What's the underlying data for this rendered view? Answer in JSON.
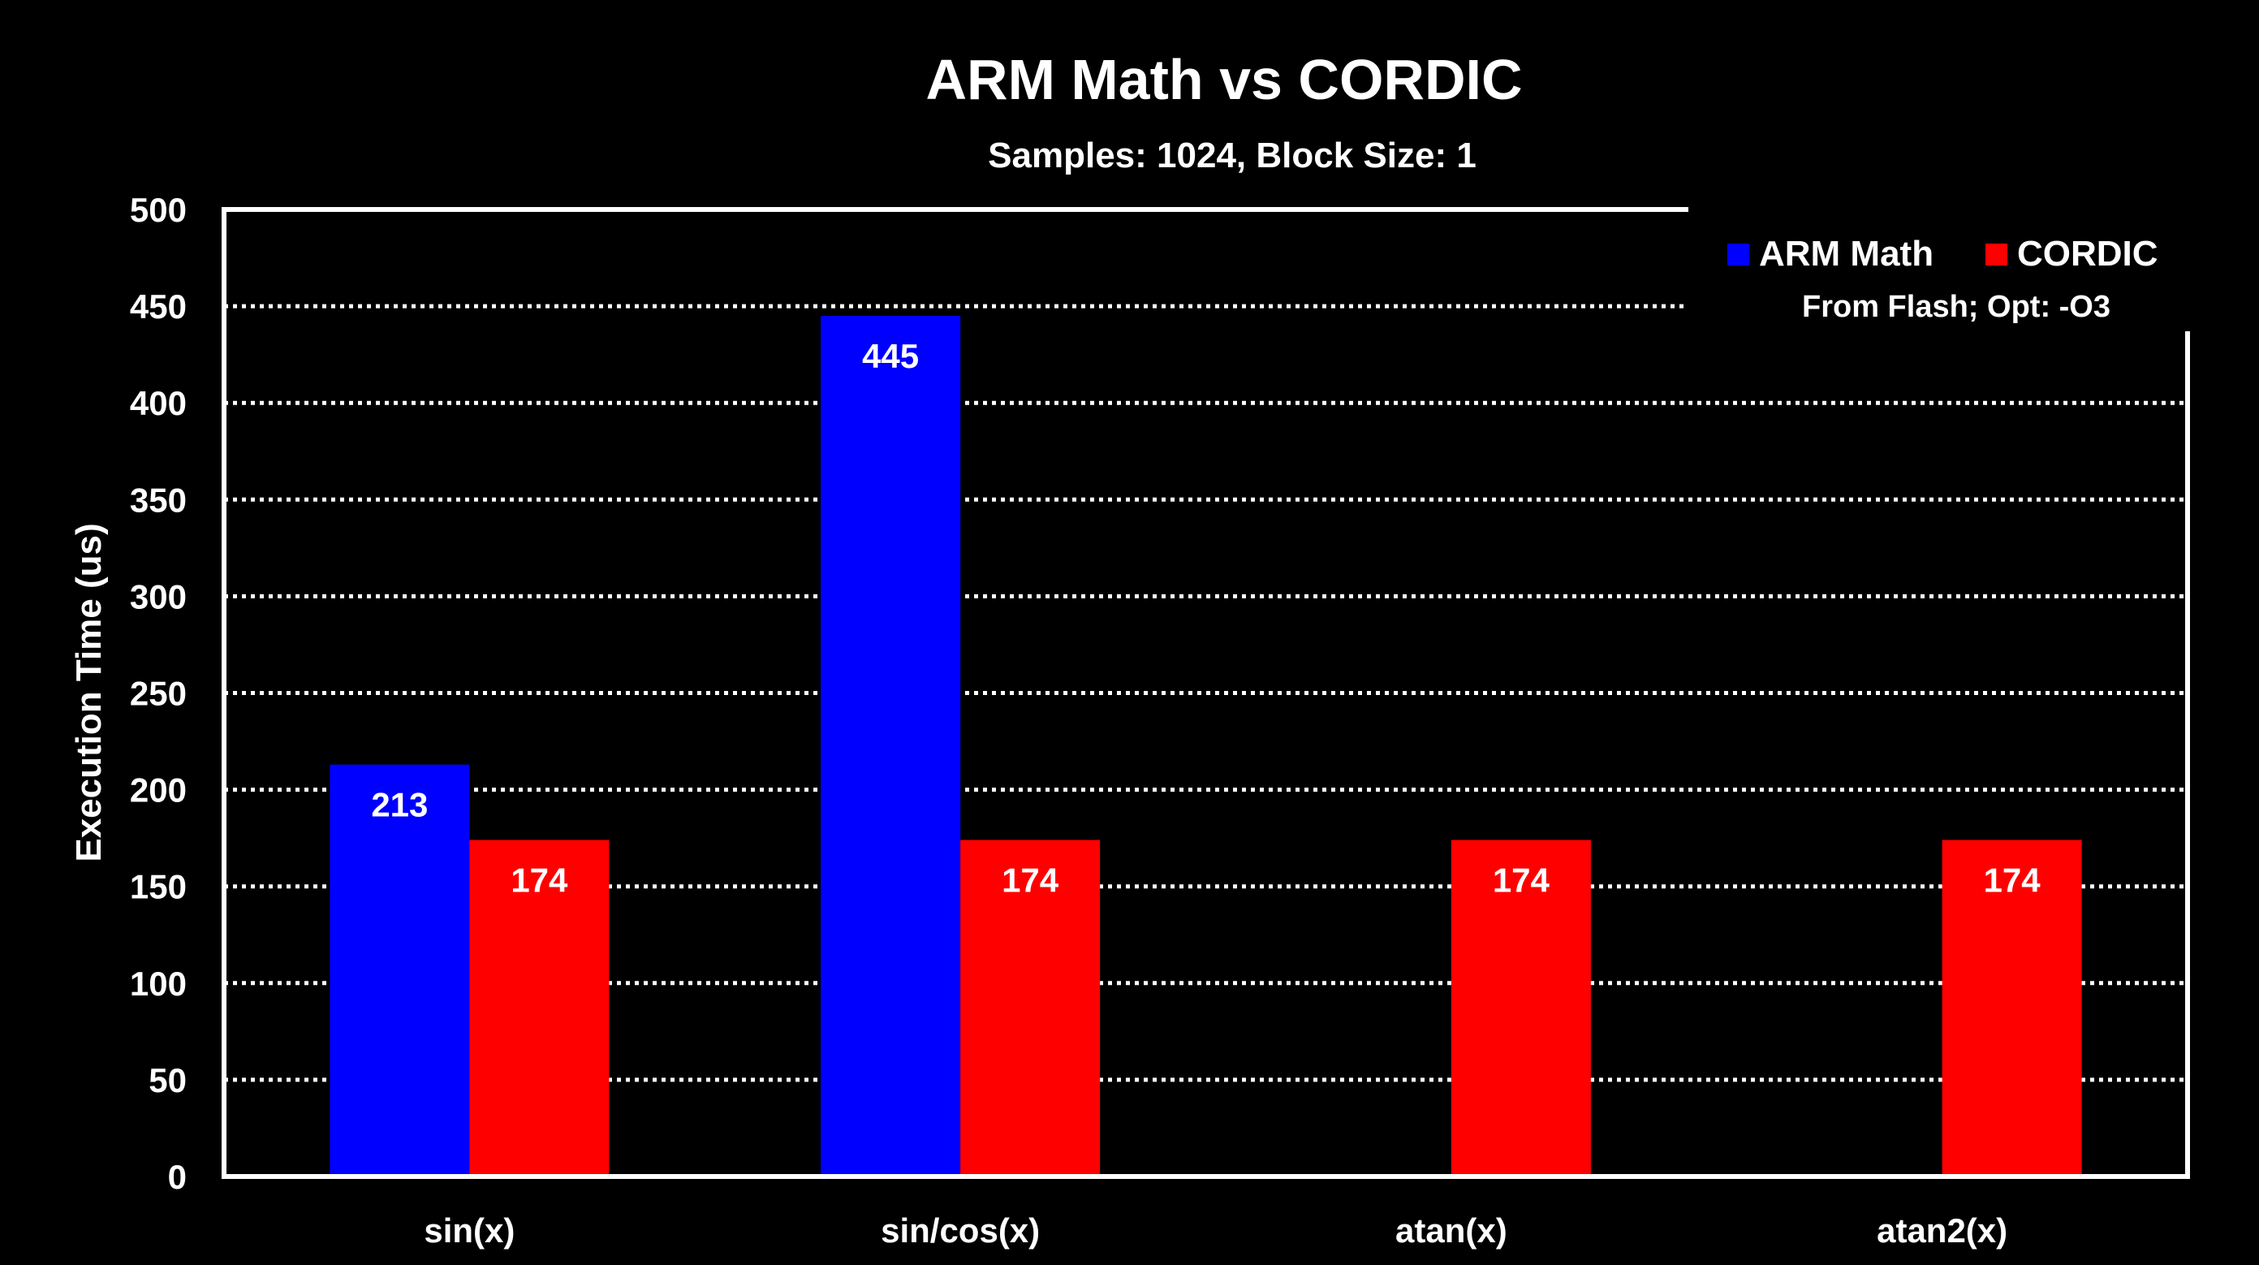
{
  "chart_data": {
    "type": "bar",
    "title": "ARM Math vs CORDIC",
    "subtitle": "Samples: 1024, Block Size: 1",
    "annotation": "From Flash; Opt: -O3",
    "xlabel": "",
    "ylabel": "Execution Time (us)",
    "ylim": [
      0,
      500
    ],
    "yticks": [
      0,
      50,
      100,
      150,
      200,
      250,
      300,
      350,
      400,
      450,
      500
    ],
    "grid": true,
    "legend_position": "top-right",
    "categories": [
      "sin(x)",
      "sin/cos(x)",
      "atan(x)",
      "atan2(x)"
    ],
    "series": [
      {
        "name": "ARM Math",
        "color": "#0000ff",
        "values": [
          213,
          445,
          null,
          null
        ]
      },
      {
        "name": "CORDIC",
        "color": "#ff0000",
        "values": [
          174,
          174,
          174,
          174
        ]
      }
    ]
  }
}
